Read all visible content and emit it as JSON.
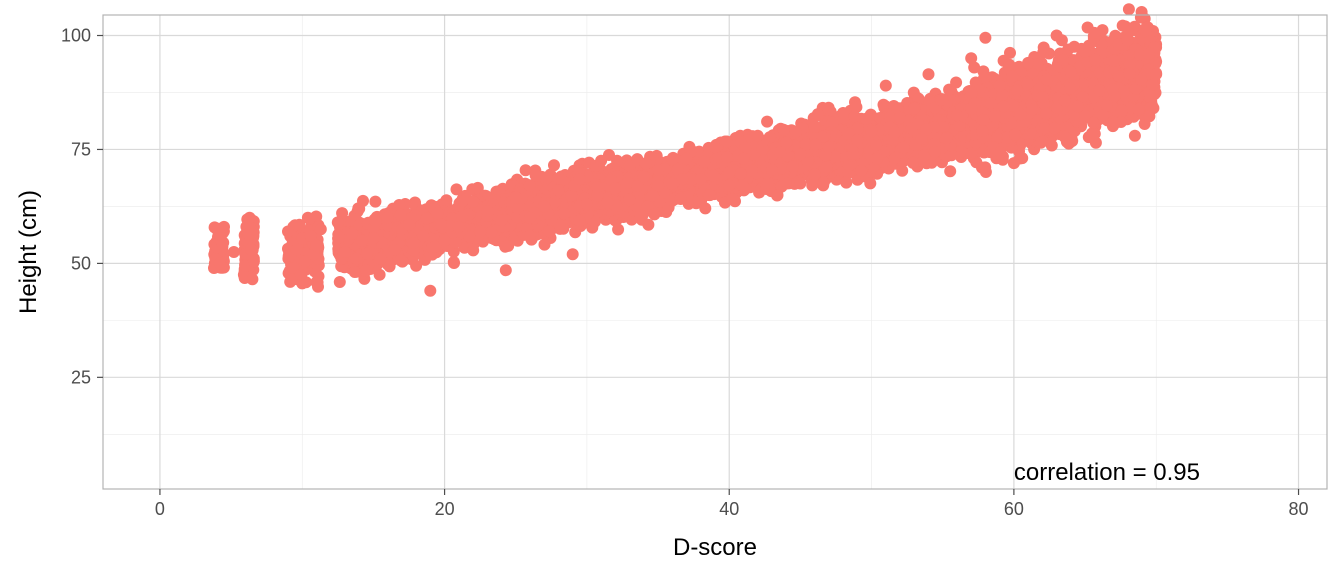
{
  "chart_data": {
    "type": "scatter",
    "xlabel": "D-score",
    "ylabel": "Height (cm)",
    "xlim": [
      -4,
      82
    ],
    "ylim": [
      0.5,
      104.5
    ],
    "x_ticks": [
      0,
      20,
      40,
      60,
      80
    ],
    "y_ticks": [
      25,
      50,
      75,
      100
    ],
    "x_tick_labels": [
      "0",
      "20",
      "40",
      "60",
      "80"
    ],
    "y_tick_labels": [
      "25",
      "50",
      "75",
      "100"
    ],
    "grid": true,
    "point_color": "#F8766D",
    "annotation": {
      "text": "correlation = 0.95",
      "x": 60,
      "y": 2.5
    },
    "trend": {
      "slope": 0.62,
      "intercept": 45.8
    },
    "series": [
      {
        "points": [
          [
            3.8,
            49
          ],
          [
            3.9,
            51
          ],
          [
            4.0,
            53.5
          ],
          [
            4.1,
            57
          ],
          [
            4.3,
            55
          ],
          [
            4.5,
            58
          ],
          [
            4.2,
            50
          ],
          [
            4.4,
            54.5
          ],
          [
            5.2,
            52.5
          ],
          [
            5.9,
            47.5
          ],
          [
            6.0,
            52
          ],
          [
            6.1,
            55
          ],
          [
            6.2,
            58
          ],
          [
            6.3,
            60
          ],
          [
            6.0,
            49.5
          ],
          [
            6.4,
            53
          ],
          [
            6.5,
            46.5
          ],
          [
            6.6,
            50.5
          ],
          [
            6.2,
            56.5
          ],
          [
            9.0,
            57
          ],
          [
            9.4,
            49
          ],
          [
            9.6,
            53
          ],
          [
            9.8,
            58.5
          ],
          [
            10.0,
            55.5
          ],
          [
            10.2,
            50.5
          ],
          [
            10.4,
            60
          ],
          [
            10.6,
            56
          ],
          [
            10.8,
            52
          ],
          [
            11.0,
            54
          ],
          [
            11.3,
            57.5
          ],
          [
            9.9,
            47.5
          ],
          [
            10.5,
            59.8
          ],
          [
            12.5,
            59
          ],
          [
            13.0,
            52.5
          ],
          [
            13.5,
            56.5
          ],
          [
            14.0,
            62
          ],
          [
            14.5,
            48.5
          ],
          [
            15.0,
            55.5
          ],
          [
            15.5,
            51
          ],
          [
            16.0,
            60
          ],
          [
            16.5,
            53
          ],
          [
            17.0,
            57.5
          ],
          [
            17.5,
            58.5
          ],
          [
            18.0,
            49.5
          ],
          [
            18.5,
            56
          ],
          [
            19.0,
            44
          ],
          [
            19.5,
            61
          ],
          [
            20.0,
            55
          ],
          [
            21.0,
            58
          ],
          [
            22.0,
            63.5
          ],
          [
            22.5,
            57
          ],
          [
            23.0,
            61.5
          ],
          [
            24.0,
            59.5
          ],
          [
            24.3,
            48.5
          ],
          [
            25.0,
            64.5
          ],
          [
            26.0,
            60
          ],
          [
            27.0,
            62.5
          ],
          [
            28.0,
            66
          ],
          [
            29.0,
            52
          ],
          [
            29.5,
            68.5
          ],
          [
            30.0,
            63
          ],
          [
            31.0,
            72.5
          ],
          [
            32.0,
            66.5
          ],
          [
            33.0,
            64
          ],
          [
            34.0,
            69
          ],
          [
            35.0,
            70.5
          ],
          [
            36.0,
            67.5
          ],
          [
            37.0,
            73
          ],
          [
            38.0,
            68.5
          ],
          [
            39.0,
            75.5
          ],
          [
            40.0,
            70
          ],
          [
            41.0,
            73
          ],
          [
            42.0,
            78
          ],
          [
            43.0,
            70.5
          ],
          [
            44.0,
            76.5
          ],
          [
            45.0,
            74
          ],
          [
            46.0,
            80
          ],
          [
            47.0,
            75.5
          ],
          [
            48.0,
            83
          ],
          [
            49.0,
            77
          ],
          [
            50.0,
            79
          ],
          [
            51.0,
            89
          ],
          [
            52.0,
            82
          ],
          [
            53.0,
            84
          ],
          [
            54.0,
            91.5
          ],
          [
            55.0,
            86
          ],
          [
            56.0,
            82.5
          ],
          [
            57.0,
            95
          ],
          [
            58.0,
            99.5
          ],
          [
            59.0,
            89
          ],
          [
            60.0,
            72
          ],
          [
            61.0,
            94
          ],
          [
            62.0,
            86.5
          ],
          [
            63.0,
            100
          ],
          [
            64.0,
            92
          ],
          [
            65.0,
            96.5
          ],
          [
            66.0,
            88
          ],
          [
            67.0,
            94.5
          ],
          [
            68.0,
            99
          ],
          [
            68.5,
            78
          ],
          [
            69.5,
            96
          ],
          [
            70.0,
            91.5
          ]
        ]
      }
    ]
  }
}
